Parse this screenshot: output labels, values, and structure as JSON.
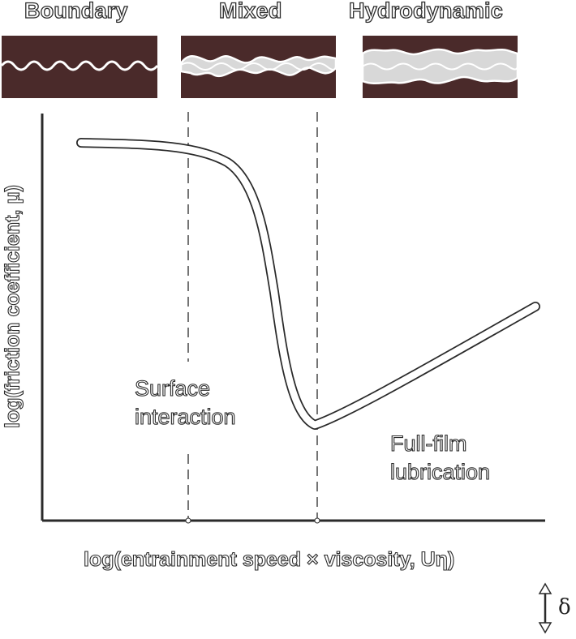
{
  "regimes": [
    {
      "id": "boundary",
      "title": "Boundary"
    },
    {
      "id": "mixed",
      "title": "Mixed"
    },
    {
      "id": "hydrodynamic",
      "title": "Hydrodynamic"
    }
  ],
  "plot": {
    "y_axis_label": "log(friction coefficient, μ)",
    "x_axis_label": "log(entrainment speed × viscosity, Uη)",
    "region_labels": {
      "surface_interaction": "Surface\ninteraction",
      "full_film": "Full-film\nlubrication"
    }
  },
  "indicator": {
    "symbol": "δ",
    "icon": "double-arrow-icon"
  },
  "colors": {
    "panel_background": "#4a2a2a",
    "surface_line": "#ffffff",
    "fluid_fill": "#d8d8d8",
    "outline": "#2a2a2a"
  }
}
